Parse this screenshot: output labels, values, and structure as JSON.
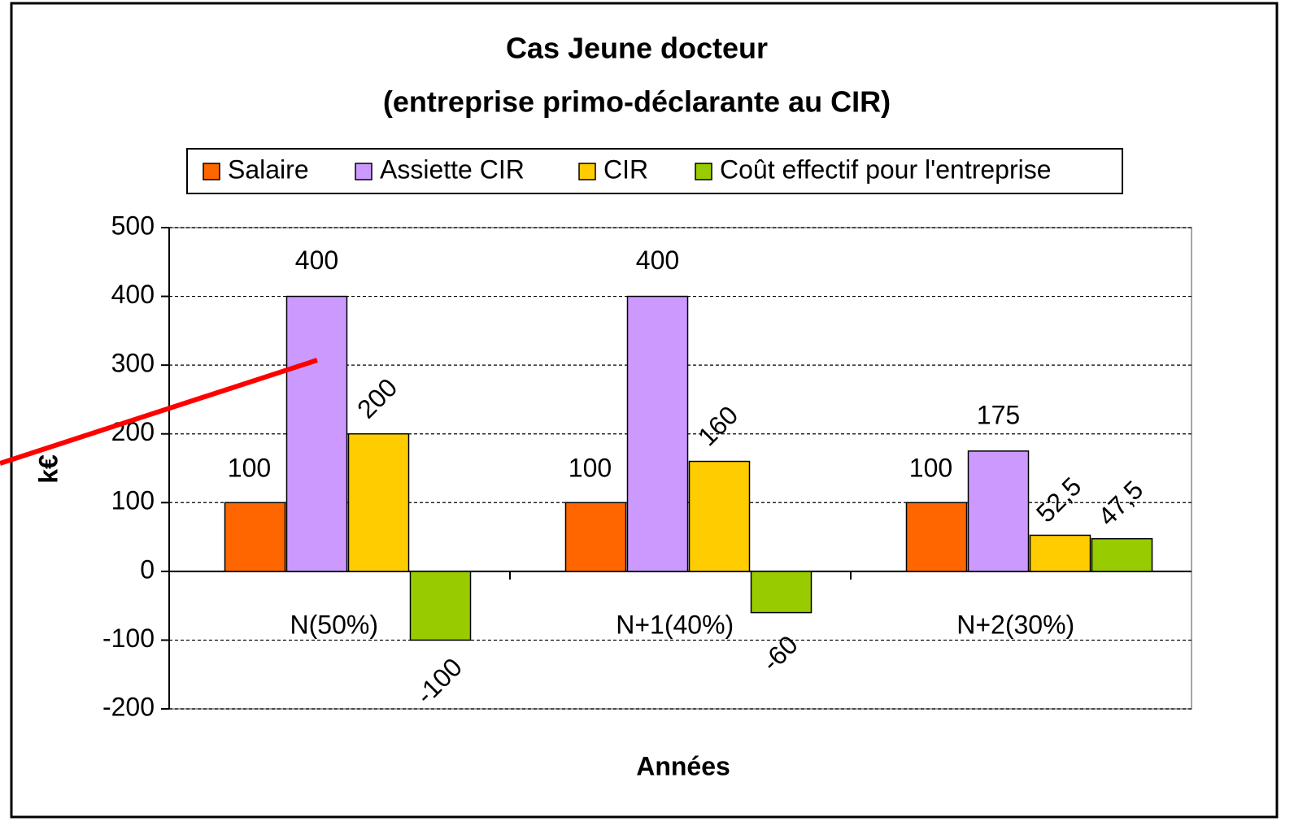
{
  "chart_data": {
    "type": "bar",
    "title": "Cas Jeune docteur",
    "subtitle": "(entreprise primo-déclarante au CIR)",
    "x_label": "Années",
    "y_label": "k€",
    "categories": [
      "N(50%)",
      "N+1(40%)",
      "N+2(30%)"
    ],
    "series": [
      {
        "name": "Salaire",
        "color": "#ff6600",
        "values": [
          100,
          100,
          100
        ]
      },
      {
        "name": "Assiette CIR",
        "color": "#cc99ff",
        "values": [
          400,
          400,
          175
        ]
      },
      {
        "name": "CIR",
        "color": "#ffcc00",
        "values": [
          200,
          160,
          52.5
        ],
        "value_labels": [
          "200",
          "160",
          "52,5"
        ]
      },
      {
        "name": "Coût effectif pour l'entreprise",
        "color": "#99cc00",
        "values": [
          -100,
          -60,
          47.5
        ],
        "value_labels": [
          "-100",
          "-60",
          "47,5"
        ]
      }
    ],
    "ylim": [
      -200,
      500
    ],
    "yticks": [
      -200,
      -100,
      0,
      100,
      200,
      300,
      400,
      500
    ],
    "grid": true,
    "legend": "top"
  }
}
